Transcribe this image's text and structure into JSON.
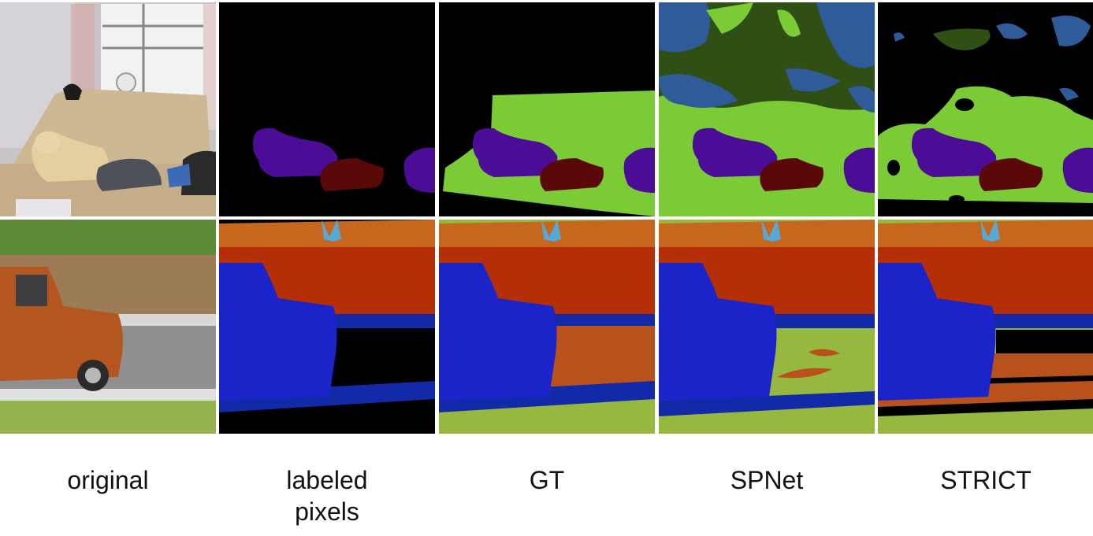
{
  "columns": [
    {
      "caption": "original"
    },
    {
      "caption": "labeled\npixels"
    },
    {
      "caption": "GT"
    },
    {
      "caption": "SPNet"
    },
    {
      "caption": "STRICT"
    }
  ],
  "rows": [
    {
      "scene": "dog and cat on sofa"
    },
    {
      "scene": "orange pickup truck by fence"
    }
  ],
  "colors": {
    "unlabeled": "#000000",
    "sofa": "#7acb36",
    "dog": "#4b0d96",
    "cat": "#5a0808",
    "plant": "#2f4f14",
    "wall": "#2f5b9a",
    "car": "#1b24c8",
    "fence": "#b42e06",
    "tree": "#c7671e",
    "road": "#b9511c",
    "sidewalk": "#132aa8",
    "grass": "#97b83e",
    "sky": "#56a9d4"
  }
}
